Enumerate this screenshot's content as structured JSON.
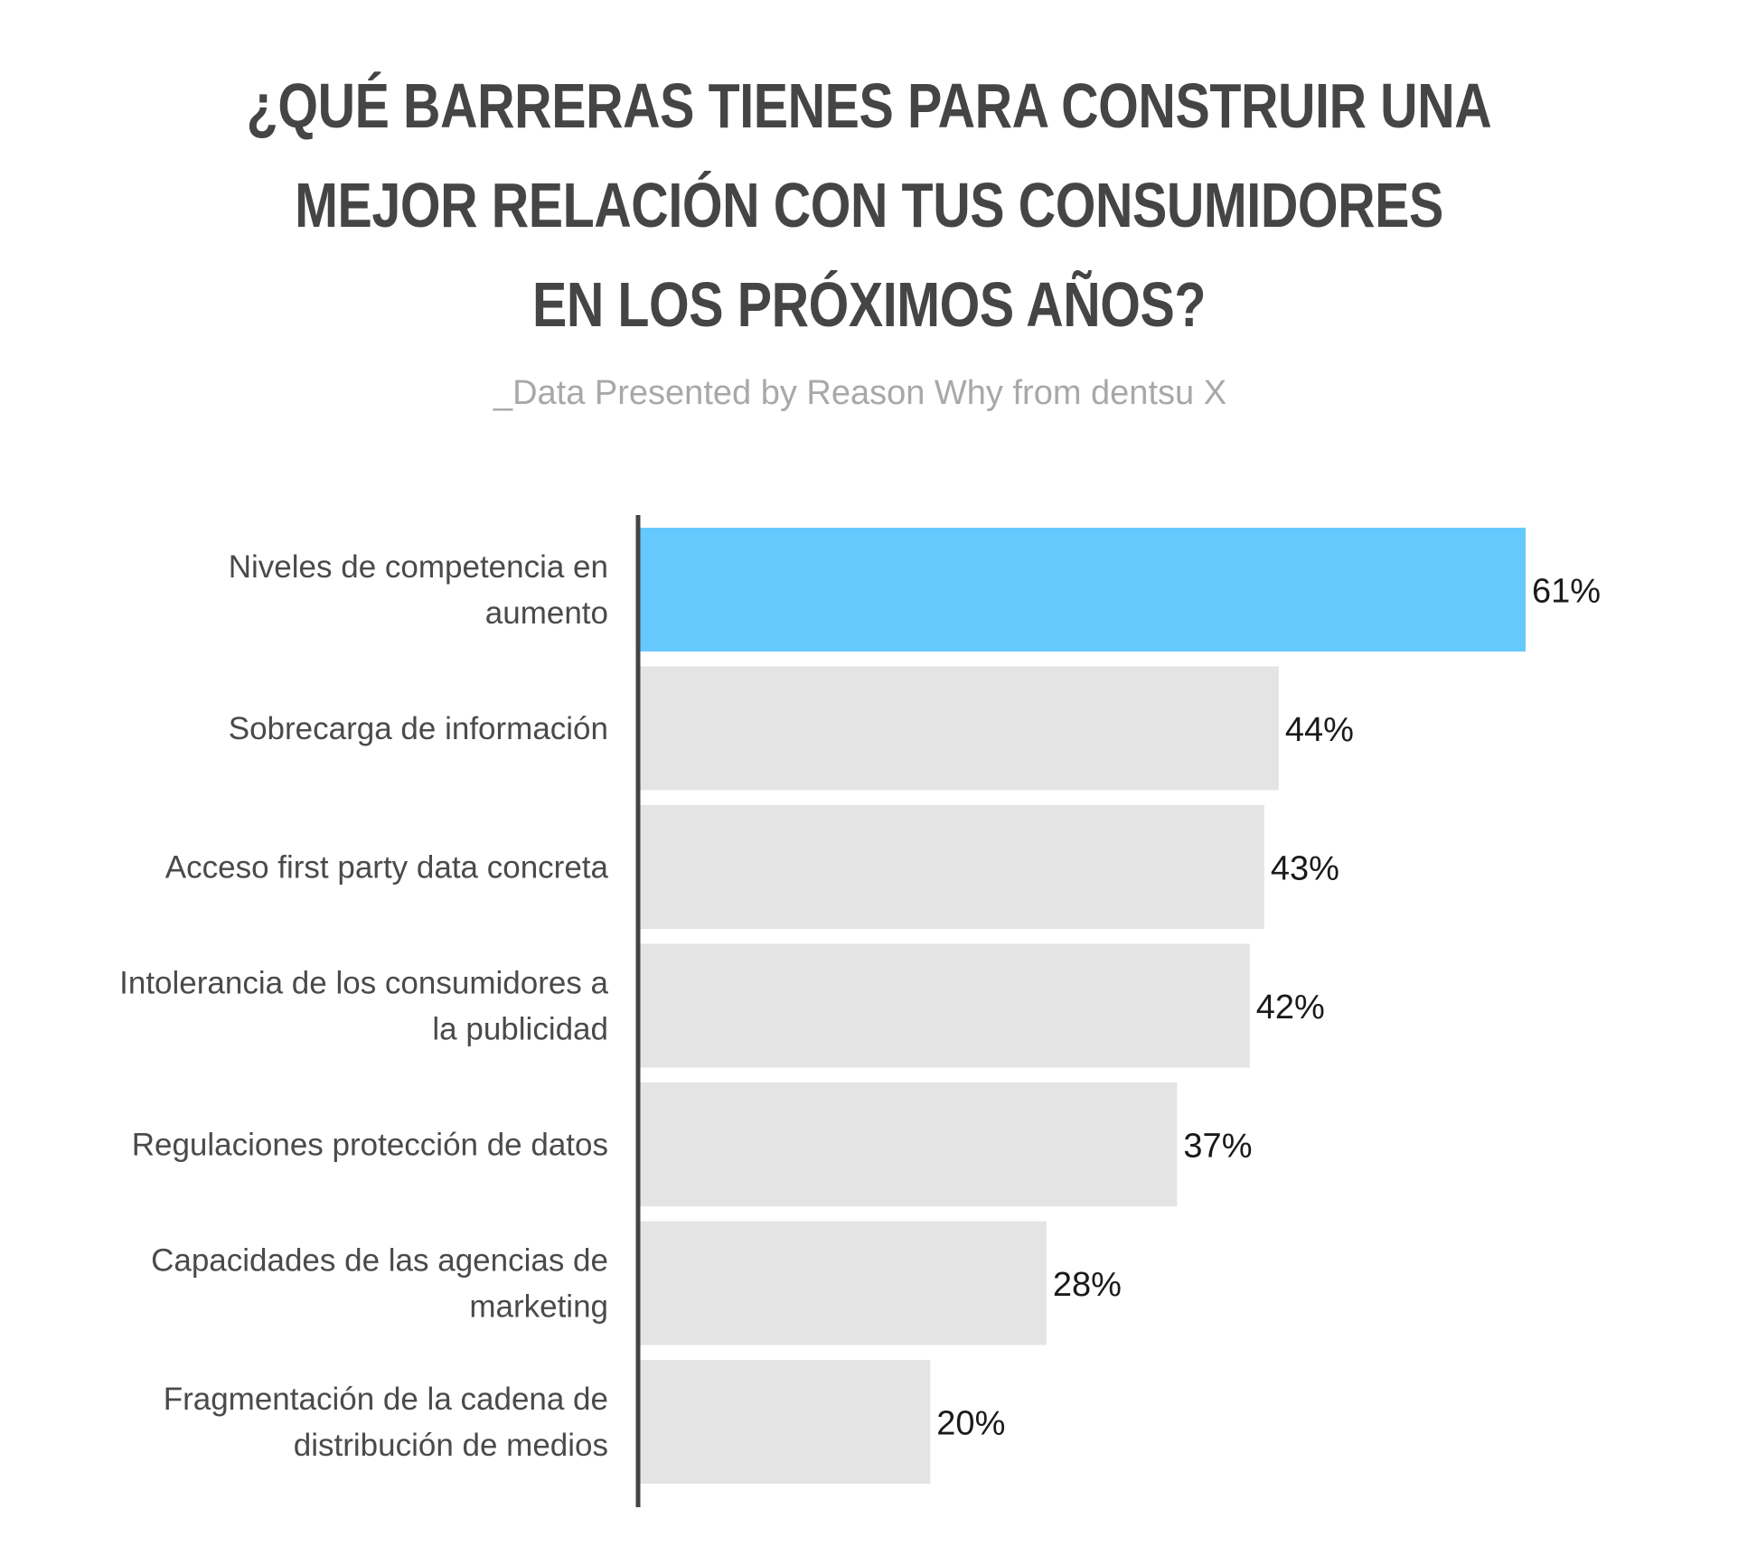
{
  "title_lines": [
    "¿QUÉ BARRERAS TIENES PARA CONSTRUIR UNA",
    "MEJOR RELACIÓN CON TUS CONSUMIDORES",
    "EN LOS PRÓXIMOS AÑOS?"
  ],
  "subtitle": "_Data Presented by Reason Why from dentsu X",
  "colors": {
    "highlight": "#66c9fe",
    "bar": "#e4e4e4",
    "axis": "#444444",
    "title": "#454545",
    "subtitle": "#a8a8a8"
  },
  "chart_data": {
    "type": "bar",
    "orientation": "horizontal",
    "categories": [
      [
        "Niveles de competencia en",
        "aumento"
      ],
      [
        "Sobrecarga de información"
      ],
      [
        "Acceso first party data concreta"
      ],
      [
        "Intolerancia de los consumidores a",
        "la publicidad"
      ],
      [
        "Regulaciones protección de datos"
      ],
      [
        "Capacidades de las agencias de",
        "marketing"
      ],
      [
        "Fragmentación de la cadena de",
        "distribución de medios"
      ]
    ],
    "values": [
      61,
      44,
      43,
      42,
      37,
      28,
      20
    ],
    "value_labels": [
      "61%",
      "44%",
      "43%",
      "42%",
      "37%",
      "28%",
      "20%"
    ],
    "highlight_index": 0,
    "xlim": [
      0,
      61
    ],
    "grid": false,
    "legend": "none"
  }
}
